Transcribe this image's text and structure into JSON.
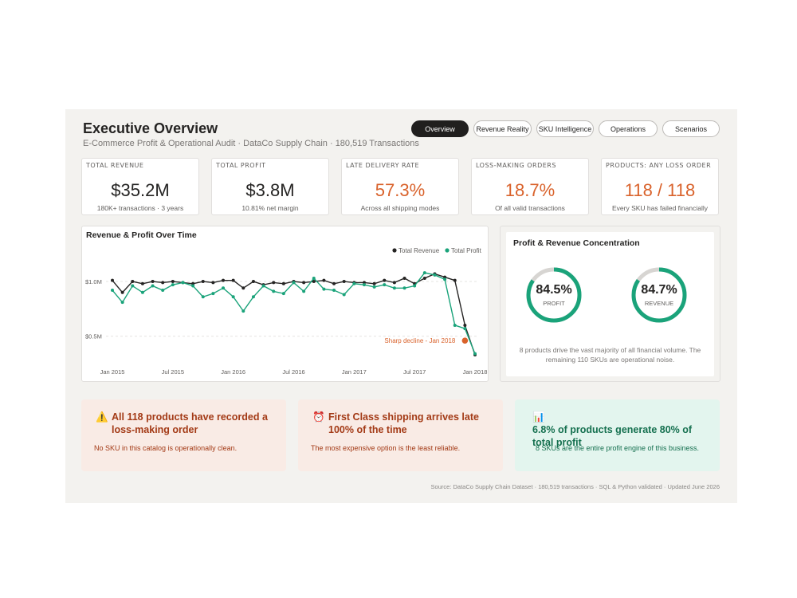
{
  "header": {
    "title": "Executive Overview",
    "subtitle": "E-Commerce Profit & Operational Audit · DataCo Supply Chain · 180,519 Transactions"
  },
  "nav": {
    "tabs": [
      {
        "label": "Overview",
        "active": true
      },
      {
        "label": "Revenue Reality",
        "active": false
      },
      {
        "label": "SKU Intelligence",
        "active": false
      },
      {
        "label": "Operations",
        "active": false
      },
      {
        "label": "Scenarios",
        "active": false
      }
    ]
  },
  "kpis": [
    {
      "label": "TOTAL REVENUE",
      "value": "$35.2M",
      "sub": "180K+ transactions · 3 years",
      "highlight": false
    },
    {
      "label": "TOTAL PROFIT",
      "value": "$3.8M",
      "sub": "10.81% net margin",
      "highlight": false
    },
    {
      "label": "LATE DELIVERY RATE",
      "value": "57.3%",
      "sub": "Across all shipping modes",
      "highlight": true
    },
    {
      "label": "LOSS-MAKING ORDERS",
      "value": "18.7%",
      "sub": "Of all valid transactions",
      "highlight": true
    },
    {
      "label": "PRODUCTS: ANY LOSS ORDER",
      "value": "118 / 118",
      "sub": "Every SKU has failed financially",
      "highlight": true
    }
  ],
  "chart_data": {
    "type": "line",
    "title": "Revenue & Profit Over Time",
    "xlabel": "",
    "ylabel": "",
    "x_ticks": [
      "Jan 2015",
      "Jul 2015",
      "Jan 2016",
      "Jul 2016",
      "Jan 2017",
      "Jul 2017",
      "Jan 2018"
    ],
    "y_ticks": [
      "$0.5M",
      "$1.0M"
    ],
    "y_tick_values": [
      0.5,
      1.0
    ],
    "ylim": [
      0.25,
      1.27
    ],
    "legend": {
      "position": "top-right",
      "entries": [
        "Total Revenue",
        "Total Profit"
      ]
    },
    "colors": {
      "revenue": "#252423",
      "profit": "#1aa37a",
      "annotation": "#d9622b"
    },
    "grid": true,
    "annotation": {
      "text": "Sharp decline - Jan 2018",
      "x": "2018-01",
      "y": 0.46
    },
    "series": [
      {
        "name": "Total Revenue",
        "x": [
          "2015-01",
          "2015-02",
          "2015-03",
          "2015-04",
          "2015-05",
          "2015-06",
          "2015-07",
          "2015-08",
          "2015-09",
          "2015-10",
          "2015-11",
          "2015-12",
          "2016-01",
          "2016-02",
          "2016-03",
          "2016-04",
          "2016-05",
          "2016-06",
          "2016-07",
          "2016-08",
          "2016-09",
          "2016-10",
          "2016-11",
          "2016-12",
          "2017-01",
          "2017-02",
          "2017-03",
          "2017-04",
          "2017-05",
          "2017-06",
          "2017-07",
          "2017-08",
          "2017-09",
          "2017-10",
          "2017-11",
          "2017-12",
          "2018-01"
        ],
        "values": [
          1.01,
          0.9,
          1.0,
          0.98,
          1.0,
          0.99,
          1.0,
          0.99,
          0.98,
          1.0,
          0.99,
          1.01,
          1.01,
          0.94,
          1.0,
          0.97,
          0.99,
          0.98,
          1.0,
          0.99,
          1.0,
          1.01,
          0.98,
          1.0,
          0.99,
          0.99,
          0.98,
          1.01,
          0.99,
          1.03,
          0.98,
          1.03,
          1.07,
          1.04,
          1.01,
          0.6,
          0.33
        ]
      },
      {
        "name": "Total Profit",
        "x": [
          "2015-01",
          "2015-02",
          "2015-03",
          "2015-04",
          "2015-05",
          "2015-06",
          "2015-07",
          "2015-08",
          "2015-09",
          "2015-10",
          "2015-11",
          "2015-12",
          "2016-01",
          "2016-02",
          "2016-03",
          "2016-04",
          "2016-05",
          "2016-06",
          "2016-07",
          "2016-08",
          "2016-09",
          "2016-10",
          "2016-11",
          "2016-12",
          "2017-01",
          "2017-02",
          "2017-03",
          "2017-04",
          "2017-05",
          "2017-06",
          "2017-07",
          "2017-08",
          "2017-09",
          "2017-10",
          "2017-11",
          "2017-12",
          "2018-01"
        ],
        "values": [
          0.92,
          0.81,
          0.96,
          0.9,
          0.96,
          0.92,
          0.97,
          0.99,
          0.96,
          0.86,
          0.89,
          0.94,
          0.86,
          0.73,
          0.86,
          0.96,
          0.91,
          0.89,
          0.99,
          0.91,
          1.03,
          0.93,
          0.92,
          0.88,
          0.98,
          0.97,
          0.95,
          0.97,
          0.94,
          0.94,
          0.96,
          1.08,
          1.06,
          1.02,
          0.6,
          0.57,
          0.34
        ]
      }
    ]
  },
  "concentration": {
    "title": "Profit & Revenue Concentration",
    "donuts": [
      {
        "value": "84.5%",
        "label": "PROFIT",
        "fraction": 0.845
      },
      {
        "value": "84.7%",
        "label": "REVENUE",
        "fraction": 0.847
      }
    ],
    "note": "8 products drive the vast majority of all financial volume. The remaining 110 SKUs are operational noise.",
    "colors": {
      "accent": "#1aa37a",
      "track": "#d7d5d2"
    }
  },
  "callouts": [
    {
      "icon": "⚠️",
      "icon_name": "warning-icon",
      "title": "All 118 products have recorded a loss-making order",
      "sub": "No SKU in this catalog is operationally clean.",
      "tone": "red"
    },
    {
      "icon": "⏰",
      "icon_name": "alarm-clock-icon",
      "title": "First Class shipping arrives late 100% of the time",
      "sub": "The most expensive option is the least reliable.",
      "tone": "red"
    },
    {
      "icon": "📊",
      "icon_name": "bar-chart-icon",
      "title": "6.8% of products generate 80% of total profit",
      "sub": "8 SKUs are the entire profit engine of this business.",
      "tone": "green"
    }
  ],
  "footer": "Source: DataCo Supply Chain Dataset · 180,519 transactions · SQL & Python validated · Updated June 2026"
}
